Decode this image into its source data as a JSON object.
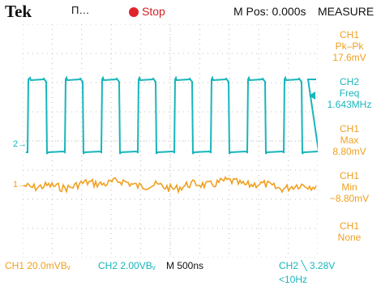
{
  "header": {
    "brand": "Tek",
    "acquisition_mode": "Π…",
    "run_state": "Stop",
    "horizontal_position": "M Pos: 0.000s",
    "measure_title": "MEASURE"
  },
  "measurements": [
    {
      "source": "CH1",
      "type": "Pk–Pk",
      "value": "17.6mV",
      "color": "#f0a020"
    },
    {
      "source": "CH2",
      "type": "Freq",
      "value": "1.643MHz",
      "color": "#17b6bc"
    },
    {
      "source": "CH1",
      "type": "Max",
      "value": "8.80mV",
      "color": "#f0a020"
    },
    {
      "source": "CH1",
      "type": "Min",
      "value": "−8.80mV",
      "color": "#f0a020"
    },
    {
      "source": "CH1",
      "type": "None",
      "value": "",
      "color": "#f0a020"
    }
  ],
  "channel_markers": {
    "ch1": "1→",
    "ch2": "2→"
  },
  "footer": {
    "ch1_scale": "CH1  20.0mVBᵥ",
    "ch2_scale": "CH2  2.00VBᵥ",
    "timebase": "M 500ns",
    "trigger": "CH2 ╲ 3.28V",
    "trigger_freq": "<10Hz"
  },
  "colors": {
    "ch1": "#f0a020",
    "ch2": "#17b6bc",
    "grid": "#bdbdbd"
  }
}
